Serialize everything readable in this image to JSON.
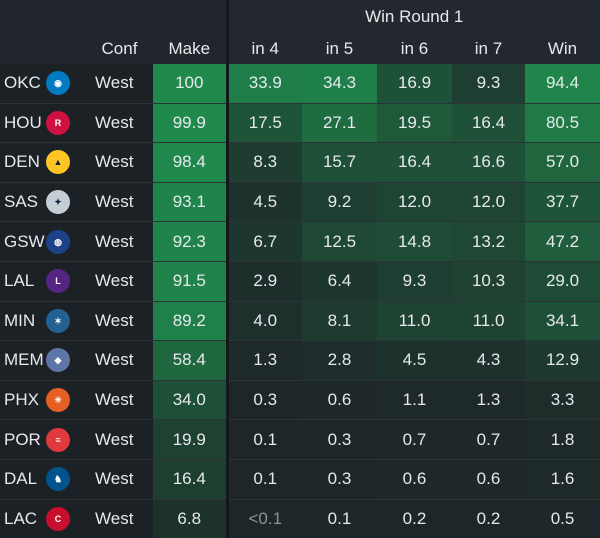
{
  "header": {
    "group_label": "Win Round 1",
    "columns": [
      "Conf",
      "Make",
      "in 4",
      "in 5",
      "in 6",
      "in 7",
      "Win"
    ]
  },
  "rows": [
    {
      "team": "OKC",
      "logo_icon": "okc-thunder-logo-icon",
      "conf": "West",
      "make": "100",
      "in4": "33.9",
      "in5": "34.3",
      "in6": "16.9",
      "in7": "9.3",
      "win": "94.4"
    },
    {
      "team": "HOU",
      "logo_icon": "hou-rockets-logo-icon",
      "conf": "West",
      "make": "99.9",
      "in4": "17.5",
      "in5": "27.1",
      "in6": "19.5",
      "in7": "16.4",
      "win": "80.5"
    },
    {
      "team": "DEN",
      "logo_icon": "den-nuggets-logo-icon",
      "conf": "West",
      "make": "98.4",
      "in4": "8.3",
      "in5": "15.7",
      "in6": "16.4",
      "in7": "16.6",
      "win": "57.0"
    },
    {
      "team": "SAS",
      "logo_icon": "sas-spurs-logo-icon",
      "conf": "West",
      "make": "93.1",
      "in4": "4.5",
      "in5": "9.2",
      "in6": "12.0",
      "in7": "12.0",
      "win": "37.7"
    },
    {
      "team": "GSW",
      "logo_icon": "gsw-warriors-logo-icon",
      "conf": "West",
      "make": "92.3",
      "in4": "6.7",
      "in5": "12.5",
      "in6": "14.8",
      "in7": "13.2",
      "win": "47.2"
    },
    {
      "team": "LAL",
      "logo_icon": "lal-lakers-logo-icon",
      "conf": "West",
      "make": "91.5",
      "in4": "2.9",
      "in5": "6.4",
      "in6": "9.3",
      "in7": "10.3",
      "win": "29.0"
    },
    {
      "team": "MIN",
      "logo_icon": "min-timberwolves-logo-icon",
      "conf": "West",
      "make": "89.2",
      "in4": "4.0",
      "in5": "8.1",
      "in6": "11.0",
      "in7": "11.0",
      "win": "34.1"
    },
    {
      "team": "MEM",
      "logo_icon": "mem-grizzlies-logo-icon",
      "conf": "West",
      "make": "58.4",
      "in4": "1.3",
      "in5": "2.8",
      "in6": "4.5",
      "in7": "4.3",
      "win": "12.9"
    },
    {
      "team": "PHX",
      "logo_icon": "phx-suns-logo-icon",
      "conf": "West",
      "make": "34.0",
      "in4": "0.3",
      "in5": "0.6",
      "in6": "1.1",
      "in7": "1.3",
      "win": "3.3"
    },
    {
      "team": "POR",
      "logo_icon": "por-blazers-logo-icon",
      "conf": "West",
      "make": "19.9",
      "in4": "0.1",
      "in5": "0.3",
      "in6": "0.7",
      "in7": "0.7",
      "win": "1.8"
    },
    {
      "team": "DAL",
      "logo_icon": "dal-mavericks-logo-icon",
      "conf": "West",
      "make": "16.4",
      "in4": "0.1",
      "in5": "0.3",
      "in6": "0.6",
      "in7": "0.6",
      "win": "1.6"
    },
    {
      "team": "LAC",
      "logo_icon": "lac-clippers-logo-icon",
      "conf": "West",
      "make": "6.8",
      "in4": "<0.1",
      "in5": "0.1",
      "in6": "0.2",
      "in7": "0.2",
      "win": "0.5"
    }
  ],
  "colors": {
    "background": "#1c2126",
    "heat_high": "#1f8a4c",
    "heat_low": "#1e2a26",
    "okc": "#007ac1",
    "hou": "#ce1141",
    "den": "#fec524",
    "sas": "#c4ced4",
    "gsw": "#1d428a",
    "lal": "#552583",
    "min": "#236192",
    "mem": "#5d76a9",
    "phx": "#e56020",
    "por": "#e03a3e",
    "dal": "#00538c",
    "lac": "#c8102e"
  }
}
